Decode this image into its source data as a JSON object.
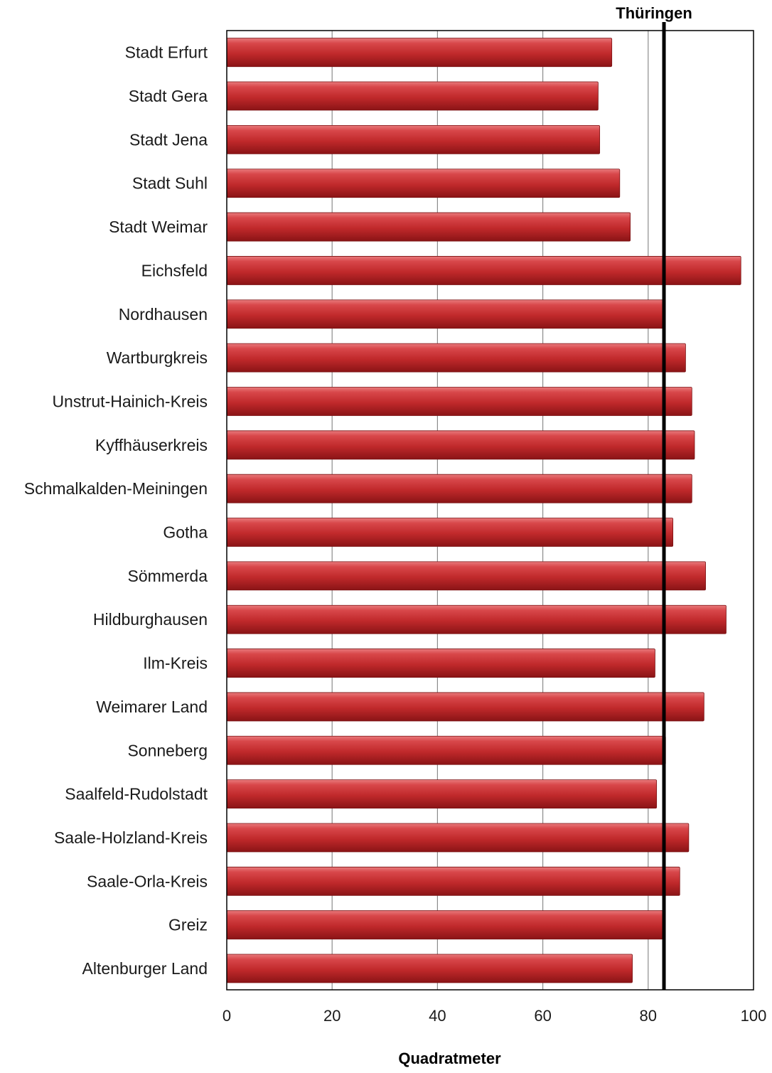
{
  "chart_data": {
    "type": "bar",
    "orientation": "horizontal",
    "categories": [
      "Stadt Erfurt",
      "Stadt Gera",
      "Stadt Jena",
      "Stadt Suhl",
      "Stadt Weimar",
      "Eichsfeld",
      "Nordhausen",
      "Wartburgkreis",
      "Unstrut-Hainich-Kreis",
      "Kyffhäuserkreis",
      "Schmalkalden-Meiningen",
      "Gotha",
      "Sömmerda",
      "Hildburghausen",
      "Ilm-Kreis",
      "Weimarer Land",
      "Sonneberg",
      "Saalfeld-Rudolstadt",
      "Saale-Holzland-Kreis",
      "Saale-Orla-Kreis",
      "Greiz",
      "Altenburger Land"
    ],
    "values": [
      73.1,
      70.5,
      70.8,
      74.6,
      76.6,
      97.6,
      82.9,
      87.1,
      88.3,
      88.8,
      88.3,
      84.7,
      90.9,
      94.8,
      81.3,
      90.6,
      83.3,
      81.6,
      87.7,
      86.0,
      82.9,
      77.0
    ],
    "reference": {
      "label": "Thüringen",
      "value": 83.0
    },
    "xlabel": "Quadratmeter",
    "xlim": [
      0,
      100
    ],
    "xticks": [
      0,
      20,
      40,
      60,
      80,
      100
    ],
    "xtick_labels": [
      "0",
      "20",
      "40",
      "60",
      "80",
      "100"
    ],
    "grid": true,
    "bar_color": "#c0292b",
    "reference_line_color": "#000000",
    "gridline_color": "#8c8c8c"
  }
}
